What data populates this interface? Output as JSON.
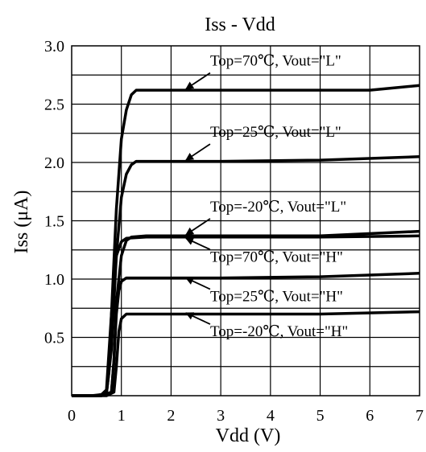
{
  "chart_data": {
    "type": "line",
    "title": "Iss - Vdd",
    "xlabel": "Vdd (V)",
    "ylabel": "Iss (μA)",
    "xlim": [
      0,
      7
    ],
    "ylim": [
      0,
      3.0
    ],
    "x_ticks": [
      "0",
      "1",
      "2",
      "3",
      "4",
      "5",
      "6",
      "7"
    ],
    "y_ticks": [
      "0.5",
      "1.0",
      "1.5",
      "2.0",
      "2.5",
      "3.0"
    ],
    "grid": true,
    "grid_minor_y_step": 0.25,
    "line_color": "#000000",
    "series": [
      {
        "name": "Top=70℃, Vout=\"L\"",
        "x": [
          0,
          0.4,
          0.6,
          0.7,
          0.8,
          0.9,
          1.0,
          1.1,
          1.2,
          1.3,
          1.5,
          3.0,
          6.0,
          7.0
        ],
        "y": [
          0,
          0,
          0.01,
          0.05,
          0.7,
          1.6,
          2.2,
          2.45,
          2.58,
          2.62,
          2.62,
          2.62,
          2.62,
          2.66
        ]
      },
      {
        "name": "Top=25℃, Vout=\"L\"",
        "x": [
          0,
          0.5,
          0.7,
          0.8,
          0.9,
          1.0,
          1.1,
          1.2,
          1.3,
          1.5,
          3.0,
          5.0,
          7.0
        ],
        "y": [
          0,
          0,
          0.02,
          0.4,
          1.2,
          1.7,
          1.9,
          1.98,
          2.01,
          2.01,
          2.01,
          2.02,
          2.05
        ]
      },
      {
        "name": "Top=-20℃, Vout=\"L\"",
        "x": [
          0,
          0.6,
          0.8,
          0.85,
          0.9,
          1.0,
          1.1,
          1.2,
          1.5,
          3.0,
          5.0,
          7.0
        ],
        "y": [
          0,
          0,
          0.03,
          0.3,
          0.8,
          1.2,
          1.33,
          1.36,
          1.37,
          1.37,
          1.37,
          1.41
        ]
      },
      {
        "name": "Top=70℃, Vout=\"H\"",
        "x": [
          0,
          0.5,
          0.7,
          0.75,
          0.8,
          0.9,
          1.0,
          1.1,
          1.5,
          3.0,
          5.0,
          7.0
        ],
        "y": [
          0,
          0,
          0.02,
          0.2,
          0.7,
          1.2,
          1.32,
          1.35,
          1.36,
          1.36,
          1.36,
          1.37
        ]
      },
      {
        "name": "Top=25℃, Vout=\"H\"",
        "x": [
          0,
          0.6,
          0.8,
          0.85,
          0.9,
          0.95,
          1.0,
          1.1,
          1.5,
          3.0,
          5.0,
          7.0
        ],
        "y": [
          0,
          0,
          0.03,
          0.3,
          0.7,
          0.9,
          0.98,
          1.01,
          1.01,
          1.01,
          1.02,
          1.05
        ]
      },
      {
        "name": "Top=-20℃, Vout=\"H\"",
        "x": [
          0,
          0.7,
          0.85,
          0.9,
          0.95,
          1.0,
          1.1,
          1.5,
          3.0,
          5.0,
          7.0
        ],
        "y": [
          0,
          0,
          0.03,
          0.25,
          0.55,
          0.66,
          0.7,
          0.7,
          0.7,
          0.7,
          0.72
        ]
      }
    ],
    "annotations": [
      {
        "series": 0,
        "label": "Top=70℃, Vout=\"L\"",
        "arrow_to": [
          2.3,
          2.63
        ]
      },
      {
        "series": 1,
        "label": "Top=25℃, Vout=\"L\"",
        "arrow_to": [
          2.3,
          2.02
        ]
      },
      {
        "series": 2,
        "label": "Top=-20℃, Vout=\"L\"",
        "arrow_to": [
          2.3,
          1.38
        ]
      },
      {
        "series": 3,
        "label": "Top=70℃, Vout=\"H\"",
        "arrow_to": [
          2.3,
          1.35
        ]
      },
      {
        "series": 4,
        "label": "Top=25℃, Vout=\"H\"",
        "arrow_to": [
          2.3,
          1.01
        ]
      },
      {
        "series": 5,
        "label": "Top=-20℃, Vout=\"H\"",
        "arrow_to": [
          2.3,
          0.71
        ]
      }
    ]
  }
}
